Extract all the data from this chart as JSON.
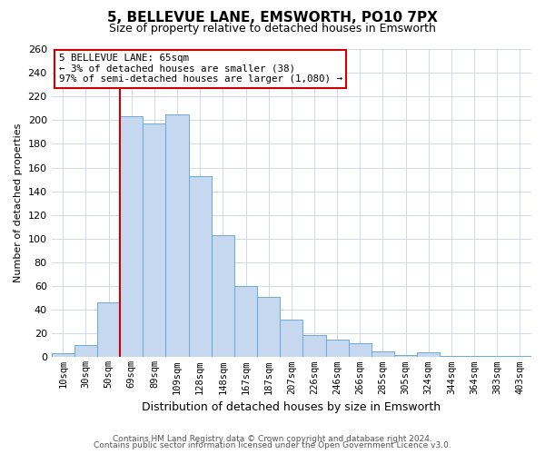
{
  "title": "5, BELLEVUE LANE, EMSWORTH, PO10 7PX",
  "subtitle": "Size of property relative to detached houses in Emsworth",
  "xlabel": "Distribution of detached houses by size in Emsworth",
  "ylabel": "Number of detached properties",
  "categories": [
    "10sqm",
    "30sqm",
    "50sqm",
    "69sqm",
    "89sqm",
    "109sqm",
    "128sqm",
    "148sqm",
    "167sqm",
    "187sqm",
    "207sqm",
    "226sqm",
    "246sqm",
    "266sqm",
    "285sqm",
    "305sqm",
    "324sqm",
    "344sqm",
    "364sqm",
    "383sqm",
    "403sqm"
  ],
  "values": [
    3,
    10,
    46,
    203,
    197,
    205,
    153,
    103,
    60,
    51,
    32,
    19,
    15,
    12,
    5,
    2,
    4,
    1,
    1,
    1,
    1
  ],
  "bar_color": "#c5d8f0",
  "bar_edge_color": "#6aaad4",
  "vline_index": 3,
  "vline_color": "#cc0000",
  "annotation_box_text": "5 BELLEVUE LANE: 65sqm\n← 3% of detached houses are smaller (38)\n97% of semi-detached houses are larger (1,080) →",
  "annotation_box_edge_color": "#cc0000",
  "ylim": [
    0,
    260
  ],
  "yticks": [
    0,
    20,
    40,
    60,
    80,
    100,
    120,
    140,
    160,
    180,
    200,
    220,
    240,
    260
  ],
  "footnote1": "Contains HM Land Registry data © Crown copyright and database right 2024.",
  "footnote2": "Contains public sector information licensed under the Open Government Licence v3.0.",
  "background_color": "#ffffff",
  "grid_color": "#d0d8e8",
  "title_fontsize": 11,
  "subtitle_fontsize": 9,
  "xlabel_fontsize": 9,
  "ylabel_fontsize": 8,
  "tick_fontsize": 7.5,
  "footnote_fontsize": 6.5
}
